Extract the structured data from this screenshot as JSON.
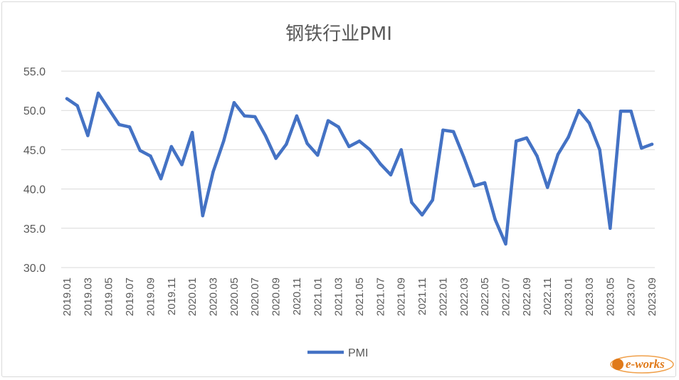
{
  "chart_data": {
    "type": "line",
    "title": "钢铁行业PMI",
    "xlabel": "",
    "ylabel": "",
    "ylim": [
      30.0,
      55.0
    ],
    "yticks": [
      "30.0",
      "35.0",
      "40.0",
      "45.0",
      "50.0",
      "55.0"
    ],
    "xtick_labels": [
      "2019.01",
      "2019.03",
      "2019.05",
      "2019.07",
      "2019.09",
      "2019.11",
      "2020.01",
      "2020.03",
      "2020.05",
      "2020.07",
      "2020.09",
      "2020.11",
      "2021.01",
      "2021.03",
      "2021.05",
      "2021.07",
      "2021.09",
      "2021.11",
      "2022.01",
      "2022.03",
      "2022.05",
      "2022.07",
      "2022.09",
      "2022.11",
      "2023.01",
      "2023.03",
      "2023.05",
      "2023.07",
      "2023.09"
    ],
    "grid": true,
    "legend_position": "bottom",
    "colors": {
      "series": "#4472c4",
      "grid": "#d9d9d9",
      "text": "#595959"
    },
    "series": [
      {
        "name": "PMI",
        "x": [
          "2019.01",
          "2019.02",
          "2019.03",
          "2019.04",
          "2019.05",
          "2019.06",
          "2019.07",
          "2019.08",
          "2019.09",
          "2019.10",
          "2019.11",
          "2019.12",
          "2020.01",
          "2020.02",
          "2020.03",
          "2020.04",
          "2020.05",
          "2020.06",
          "2020.07",
          "2020.08",
          "2020.09",
          "2020.10",
          "2020.11",
          "2020.12",
          "2021.01",
          "2021.02",
          "2021.03",
          "2021.04",
          "2021.05",
          "2021.06",
          "2021.07",
          "2021.08",
          "2021.09",
          "2021.10",
          "2021.11",
          "2021.12",
          "2022.01",
          "2022.02",
          "2022.03",
          "2022.04",
          "2022.05",
          "2022.06",
          "2022.07",
          "2022.08",
          "2022.09",
          "2022.10",
          "2022.11",
          "2022.12",
          "2023.01",
          "2023.02",
          "2023.03",
          "2023.04",
          "2023.05",
          "2023.06",
          "2023.07",
          "2023.08",
          "2023.09"
        ],
        "values": [
          51.5,
          50.6,
          46.8,
          52.2,
          50.2,
          48.2,
          47.9,
          44.9,
          44.2,
          41.3,
          45.4,
          43.1,
          47.2,
          36.6,
          42.2,
          46.1,
          51.0,
          49.3,
          49.2,
          46.8,
          43.9,
          45.7,
          49.3,
          45.8,
          44.3,
          48.7,
          47.9,
          45.4,
          46.1,
          45.0,
          43.2,
          41.8,
          45.0,
          38.3,
          36.7,
          38.6,
          47.5,
          47.3,
          44.0,
          40.4,
          40.8,
          36.1,
          33.0,
          46.1,
          46.5,
          44.2,
          40.2,
          44.4,
          46.6,
          50.0,
          48.4,
          45.0,
          35.0,
          49.9,
          49.9,
          45.2,
          45.7
        ]
      }
    ]
  },
  "legend": {
    "label": "PMI"
  },
  "watermark": {
    "text": "e-works"
  }
}
